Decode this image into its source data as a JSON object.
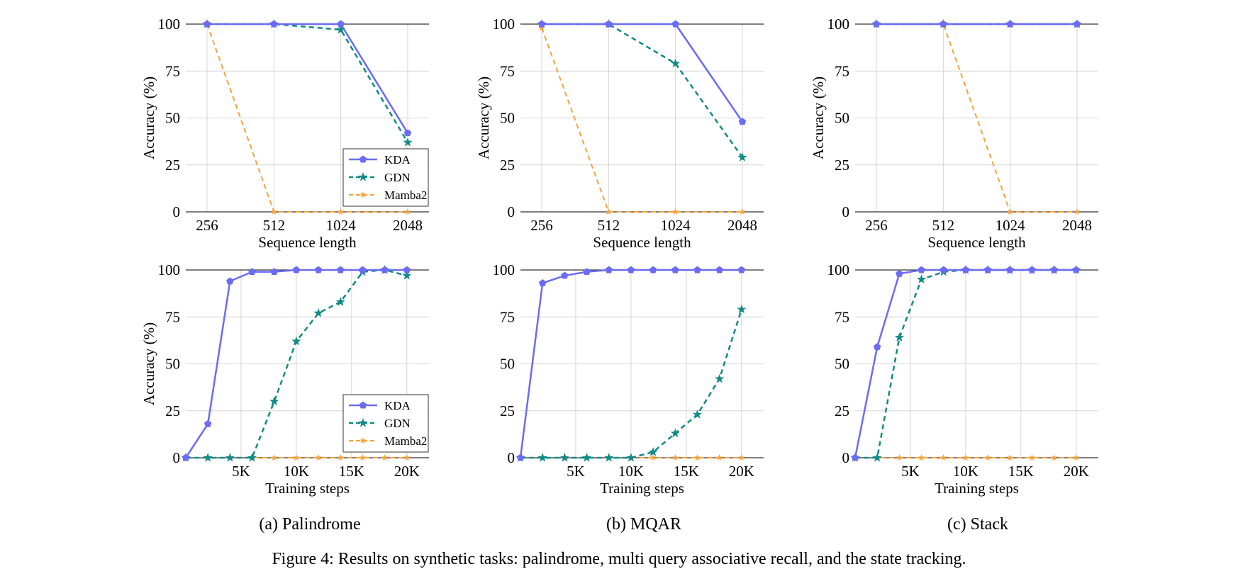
{
  "figure": {
    "caption": "Figure 4: Results on synthetic tasks: palindrome, multi query associative recall, and the state tracking.",
    "subcaptions": [
      "(a) Palindrome",
      "(b) MQAR",
      "(c) Stack"
    ]
  },
  "colors": {
    "KDA": "#6b6bf5",
    "GDN": "#118a86",
    "Mamba2": "#f7a23c",
    "grid": "#d4d4d4"
  },
  "chart_data": [
    {
      "type": "line",
      "task": "Palindrome",
      "xlabel": "Sequence length",
      "ylabel": "Accuracy (%)",
      "x_kind": "categorical",
      "categories": [
        "256",
        "512",
        "1024",
        "2048"
      ],
      "ylim": [
        0,
        100
      ],
      "yticks": [
        0,
        25,
        50,
        75,
        100
      ],
      "grid": true,
      "legend": "bottom-right",
      "series": [
        {
          "name": "KDA",
          "values": [
            100,
            100,
            100,
            42
          ]
        },
        {
          "name": "GDN",
          "values": [
            100,
            100,
            97,
            37
          ]
        },
        {
          "name": "Mamba2",
          "values": [
            100,
            0,
            0,
            0
          ]
        }
      ]
    },
    {
      "type": "line",
      "task": "MQAR",
      "xlabel": "Sequence length",
      "ylabel": "Accuracy (%)",
      "x_kind": "categorical",
      "categories": [
        "256",
        "512",
        "1024",
        "2048"
      ],
      "ylim": [
        0,
        100
      ],
      "yticks": [
        0,
        25,
        50,
        75,
        100
      ],
      "grid": true,
      "legend": "none",
      "series": [
        {
          "name": "KDA",
          "values": [
            100,
            100,
            100,
            48
          ]
        },
        {
          "name": "GDN",
          "values": [
            100,
            100,
            79,
            29
          ]
        },
        {
          "name": "Mamba2",
          "values": [
            98,
            0,
            0,
            0
          ]
        }
      ]
    },
    {
      "type": "line",
      "task": "Stack",
      "xlabel": "Sequence length",
      "ylabel": "Accuracy (%)",
      "x_kind": "categorical",
      "categories": [
        "256",
        "512",
        "1024",
        "2048"
      ],
      "ylim": [
        0,
        100
      ],
      "yticks": [
        0,
        25,
        50,
        75,
        100
      ],
      "grid": true,
      "legend": "none",
      "series": [
        {
          "name": "KDA",
          "values": [
            100,
            100,
            100,
            100
          ]
        },
        {
          "name": "GDN",
          "values": [
            100,
            100,
            100,
            100
          ]
        },
        {
          "name": "Mamba2",
          "values": [
            100,
            100,
            0,
            0
          ]
        }
      ]
    },
    {
      "type": "line",
      "task": "Palindrome",
      "xlabel": "Training steps",
      "ylabel": "Accuracy (%)",
      "x_kind": "numeric",
      "xlim": [
        0,
        22000
      ],
      "xticks": [
        5000,
        10000,
        15000,
        20000
      ],
      "xtick_labels": [
        "5K",
        "10K",
        "15K",
        "20K"
      ],
      "ylim": [
        0,
        100
      ],
      "yticks": [
        0,
        25,
        50,
        75,
        100
      ],
      "grid": true,
      "legend": "bottom-right",
      "x": [
        0,
        2000,
        4000,
        6000,
        8000,
        10000,
        12000,
        14000,
        16000,
        18000,
        20000
      ],
      "series": [
        {
          "name": "KDA",
          "values": [
            0,
            18,
            94,
            99,
            99,
            100,
            100,
            100,
            100,
            100,
            100
          ]
        },
        {
          "name": "GDN",
          "values": [
            0,
            0,
            0,
            0,
            30,
            62,
            77,
            83,
            99,
            100,
            97
          ]
        },
        {
          "name": "Mamba2",
          "values": [
            0,
            0,
            0,
            0,
            0,
            0,
            0,
            0,
            0,
            0,
            0
          ]
        }
      ]
    },
    {
      "type": "line",
      "task": "MQAR",
      "xlabel": "Training steps",
      "ylabel": "",
      "x_kind": "numeric",
      "xlim": [
        0,
        22000
      ],
      "xticks": [
        5000,
        10000,
        15000,
        20000
      ],
      "xtick_labels": [
        "5K",
        "10K",
        "15K",
        "20K"
      ],
      "ylim": [
        0,
        100
      ],
      "yticks": [
        0,
        25,
        50,
        75,
        100
      ],
      "grid": true,
      "legend": "none",
      "x": [
        0,
        2000,
        4000,
        6000,
        8000,
        10000,
        12000,
        14000,
        16000,
        18000,
        20000
      ],
      "series": [
        {
          "name": "KDA",
          "values": [
            0,
            93,
            97,
            99,
            100,
            100,
            100,
            100,
            100,
            100,
            100
          ]
        },
        {
          "name": "GDN",
          "values": [
            0,
            0,
            0,
            0,
            0,
            0,
            3,
            13,
            23,
            42,
            79
          ]
        },
        {
          "name": "Mamba2",
          "values": [
            0,
            0,
            0,
            0,
            0,
            0,
            0,
            0,
            0,
            0,
            0
          ]
        }
      ]
    },
    {
      "type": "line",
      "task": "Stack",
      "xlabel": "Training steps",
      "ylabel": "",
      "x_kind": "numeric",
      "xlim": [
        0,
        22000
      ],
      "xticks": [
        5000,
        10000,
        15000,
        20000
      ],
      "xtick_labels": [
        "5K",
        "10K",
        "15K",
        "20K"
      ],
      "ylim": [
        0,
        100
      ],
      "yticks": [
        0,
        25,
        50,
        75,
        100
      ],
      "grid": true,
      "legend": "none",
      "x": [
        0,
        2000,
        4000,
        6000,
        8000,
        10000,
        12000,
        14000,
        16000,
        18000,
        20000
      ],
      "series": [
        {
          "name": "KDA",
          "values": [
            0,
            59,
            98,
            100,
            100,
            100,
            100,
            100,
            100,
            100,
            100
          ]
        },
        {
          "name": "GDN",
          "values": [
            0,
            0,
            64,
            95,
            99,
            100,
            100,
            100,
            100,
            100,
            100
          ]
        },
        {
          "name": "Mamba2",
          "values": [
            0,
            0,
            0,
            0,
            0,
            0,
            0,
            0,
            0,
            0,
            0
          ]
        }
      ]
    }
  ]
}
